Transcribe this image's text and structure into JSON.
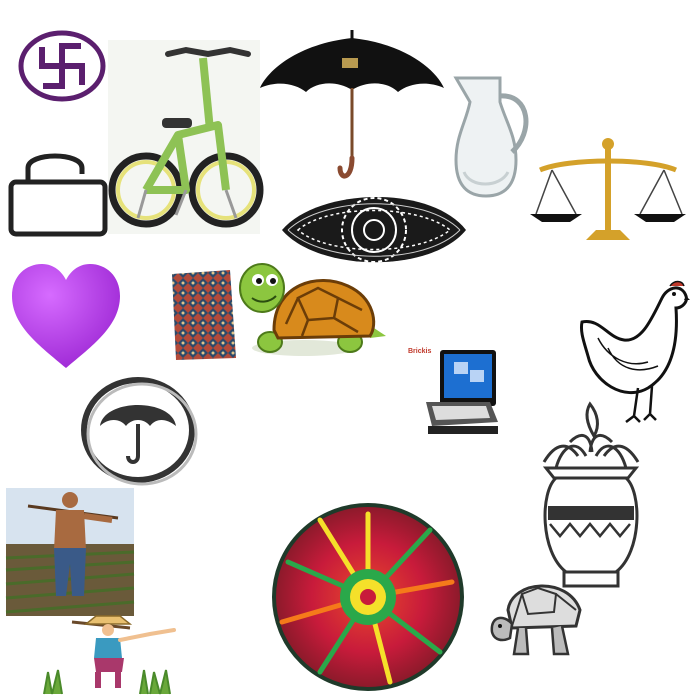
{
  "scene": {
    "background": "#ffffff",
    "items": [
      {
        "id": "swastika",
        "icon": "swastika-icon",
        "color": "#5b1f6e"
      },
      {
        "id": "bicycle",
        "icon": "bicycle-icon",
        "color": "#9ccf5a"
      },
      {
        "id": "umbrella",
        "icon": "umbrella-icon",
        "color": "#111111"
      },
      {
        "id": "jug",
        "icon": "glass-jug-icon",
        "color": "#cfd6d8"
      },
      {
        "id": "scales",
        "icon": "balance-scale-icon",
        "color": "#d4a12a"
      },
      {
        "id": "lock",
        "icon": "open-padlock-icon",
        "color": "#222222"
      },
      {
        "id": "rangoli",
        "icon": "rangoli-eye-icon",
        "color": "#ffffff"
      },
      {
        "id": "heart",
        "icon": "purple-heart-icon",
        "color": "#b43de0"
      },
      {
        "id": "cloth",
        "icon": "woven-cloth-icon",
        "color": "#b24a3a"
      },
      {
        "id": "turtle-cartoon",
        "icon": "turtle-icon",
        "color": "#8cc63f"
      },
      {
        "id": "computer",
        "icon": "computer-icon",
        "color": "#1d6fd1"
      },
      {
        "id": "hen",
        "icon": "hen-icon",
        "color": "#111111"
      },
      {
        "id": "umbrella-symbol",
        "icon": "umbrella-circle-icon",
        "color": "#333333"
      },
      {
        "id": "kalash",
        "icon": "kalash-pot-icon",
        "color": "#333333"
      },
      {
        "id": "farmer-photo",
        "icon": "farmer-photo-icon",
        "color": "#7a5a3a"
      },
      {
        "id": "basket",
        "icon": "woven-basket-icon",
        "color": "#d81b3b"
      },
      {
        "id": "tortoise-sketch",
        "icon": "tortoise-icon",
        "color": "#333333"
      },
      {
        "id": "farmer-cartoon",
        "icon": "farmer-cartoon-icon",
        "color": "#a9386b"
      }
    ],
    "computer_brand": "Brickis"
  }
}
